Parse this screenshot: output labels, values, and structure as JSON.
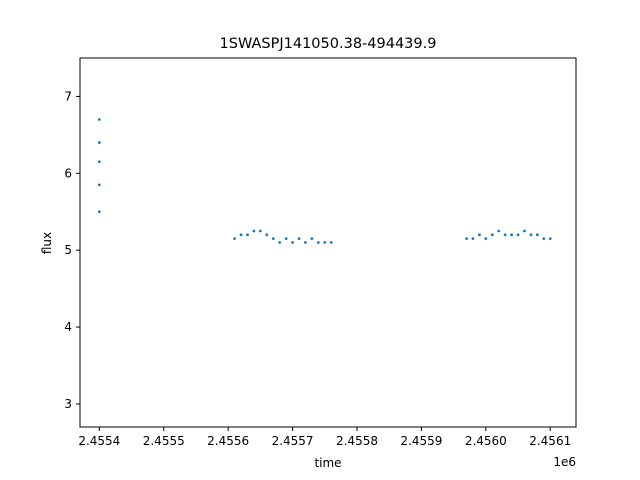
{
  "chart_data": {
    "type": "scatter",
    "title": "1SWASPJ141050.38-494439.9",
    "xlabel": "time",
    "ylabel": "flux",
    "x_offset_label": "1e6",
    "xlim": [
      2.45537,
      2.45614
    ],
    "ylim": [
      2.7,
      7.5
    ],
    "x_ticks": [
      2.4554,
      2.4555,
      2.4556,
      2.4557,
      2.4558,
      2.4559,
      2.456,
      2.4561
    ],
    "x_tick_labels": [
      "2.4554",
      "2.4555",
      "2.4556",
      "2.4557",
      "2.4558",
      "2.4559",
      "2.4560",
      "2.4561"
    ],
    "y_ticks": [
      3,
      4,
      5,
      6,
      7
    ],
    "y_tick_labels": [
      "3",
      "4",
      "5",
      "6",
      "7"
    ],
    "grid": false,
    "marker_color": "#1f77b4",
    "series": [
      {
        "x": [
          2.4554,
          2.4554,
          2.4554,
          2.4554,
          2.4554,
          2.45561,
          2.45562,
          2.45563,
          2.45564,
          2.45565,
          2.45566,
          2.45567,
          2.45568,
          2.45569,
          2.4557,
          2.45571,
          2.45572,
          2.45573,
          2.45574,
          2.45575,
          2.45576,
          2.45597,
          2.45598,
          2.45599,
          2.456,
          2.45601,
          2.45602,
          2.45603,
          2.45604,
          2.45605,
          2.45606,
          2.45607,
          2.45608,
          2.45609,
          2.4561
        ],
        "y": [
          5.5,
          5.85,
          6.15,
          6.4,
          6.7,
          5.15,
          5.2,
          5.2,
          5.25,
          5.25,
          5.2,
          5.15,
          5.1,
          5.15,
          5.1,
          5.15,
          5.1,
          5.15,
          5.1,
          5.1,
          5.1,
          5.15,
          5.15,
          5.2,
          5.15,
          5.2,
          5.25,
          5.2,
          5.2,
          5.2,
          5.25,
          5.2,
          5.2,
          5.15,
          5.15
        ]
      }
    ]
  }
}
